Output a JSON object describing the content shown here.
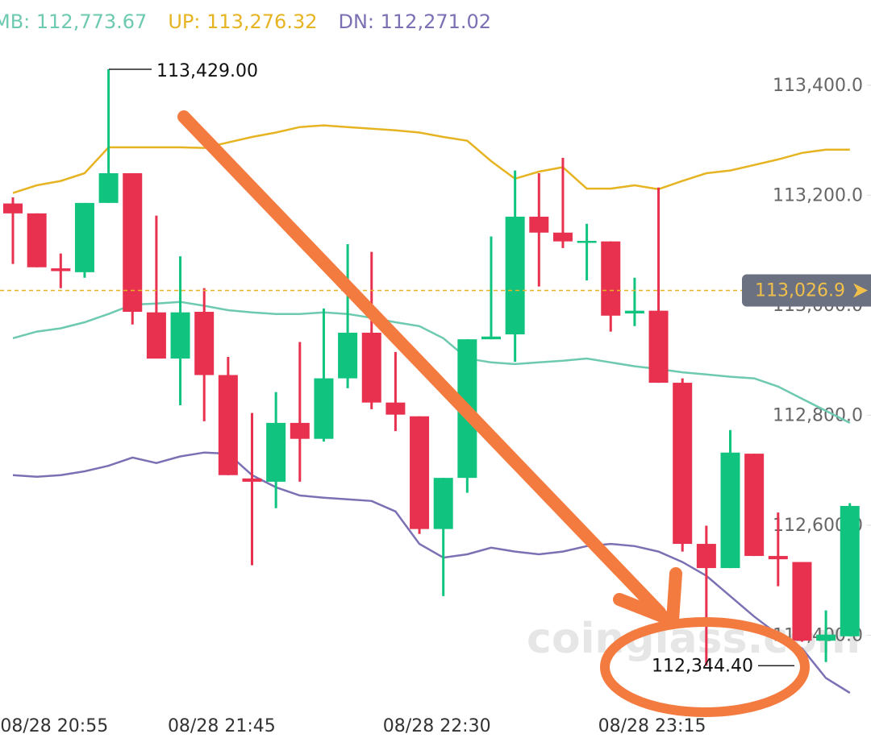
{
  "chart_data": {
    "type": "candlestick",
    "categories": [
      null,
      null,
      "08/28 20:55",
      null,
      null,
      null,
      null,
      null,
      null,
      "08/28 21:45",
      null,
      null,
      null,
      null,
      null,
      null,
      null,
      null,
      "08/28 22:30",
      null,
      null,
      null,
      null,
      null,
      null,
      null,
      null,
      "08/28 23:15",
      null,
      null,
      null,
      null,
      null,
      null,
      null,
      null
    ],
    "open": [
      113185,
      113167,
      113067,
      113060,
      113186,
      113240,
      112987,
      112903,
      112988,
      112873,
      112685,
      112679,
      112786,
      112757,
      112867,
      112950,
      112823,
      112798,
      112593,
      112686,
      112938,
      112947,
      113161,
      113132,
      113116,
      113116,
      112985,
      112990,
      112859,
      112566,
      112522,
      112730,
      112544,
      112533,
      112390,
      112398
    ],
    "high": [
      113196,
      113167,
      113094,
      113186,
      113429,
      113240,
      113163,
      113089,
      113031,
      112906,
      112804,
      112842,
      112933,
      112994,
      113111,
      113097,
      112915,
      112798,
      112686,
      112938,
      113125,
      113245,
      113240,
      113268,
      113148,
      113116,
      113050,
      113214,
      112867,
      112599,
      112773,
      112730,
      112623,
      112533,
      112445,
      112640
    ],
    "low": [
      113075,
      113069,
      113031,
      113050,
      113186,
      112965,
      112903,
      112818,
      112789,
      112691,
      112527,
      112631,
      112679,
      112752,
      112849,
      112811,
      112771,
      112584,
      112471,
      112659,
      112938,
      112897,
      113034,
      113104,
      113045,
      112952,
      112962,
      112859,
      112552,
      112344.4,
      112522,
      112544,
      112489,
      112388,
      112351,
      112398
    ],
    "close": [
      113167,
      113069,
      113062,
      113186,
      113240,
      112988,
      112903,
      112987,
      112873,
      112691,
      112679,
      112786,
      112757,
      112867,
      112950,
      112823,
      112801,
      112593,
      112686,
      112938,
      112943,
      113161,
      113132,
      113116,
      113117,
      112981,
      112990,
      112859,
      112566,
      112522,
      112732,
      112544,
      112538,
      112390,
      112401,
      112635
    ],
    "up_color": "#10c47f",
    "down_color": "#e8304f",
    "series": [
      {
        "name": "MB: 112,773.67",
        "color": "#6dc9b0",
        "values": [
          112940,
          112952,
          112958,
          112969,
          112984,
          113001,
          113003,
          113006,
          112999,
          112991,
          112987,
          112984,
          112984,
          112987,
          112984,
          112977,
          112969,
          112962,
          112940,
          112903,
          112896,
          112893,
          112896,
          112899,
          112903,
          112896,
          112889,
          112884,
          112878,
          112874,
          112870,
          112867,
          112852,
          112830,
          112808,
          112786
        ]
      },
      {
        "name": "UP: 113,276.32",
        "color": "#e6b422",
        "values": [
          113204,
          113218,
          113226,
          113240,
          113287,
          113287,
          113287,
          113287,
          113286,
          113296,
          113306,
          113314,
          113324,
          113327,
          113324,
          113321,
          113318,
          113314,
          113306,
          113299,
          113262,
          113230,
          113243,
          113251,
          113212,
          113212,
          113218,
          113211,
          113226,
          113240,
          113245,
          113255,
          113265,
          113277,
          113283,
          113283
        ]
      },
      {
        "name": "DN: 112,271.02",
        "color": "#7c70b4",
        "values": [
          112691,
          112688,
          112691,
          112698,
          112708,
          112723,
          112713,
          112725,
          112732,
          112730,
          112691,
          112669,
          112654,
          112650,
          112647,
          112644,
          112625,
          112566,
          112541,
          112547,
          112559,
          112552,
          112547,
          112552,
          112562,
          112566,
          112562,
          112552,
          112533,
          112508,
          112471,
          112434,
          112401,
          112376,
          112322,
          112295
        ]
      }
    ],
    "ylim": [
      112213,
      113555
    ],
    "yticks": [
      {
        "value": 113400,
        "label": "113,400.0"
      },
      {
        "value": 113200,
        "label": "113,200.0"
      },
      {
        "value": 113000,
        "label": "113,000.0"
      },
      {
        "value": 112800,
        "label": "112,800.0"
      },
      {
        "value": 112600,
        "label": "112,600.0"
      },
      {
        "value": 112400,
        "label": "112,400.0"
      }
    ],
    "current_price": {
      "value": 113026.9,
      "label": "113,026.9"
    },
    "annotations": [
      {
        "value": 113429,
        "label": "113,429.00"
      },
      {
        "value": 112344.4,
        "label": "112,344.40"
      }
    ],
    "watermark": "coinglass.com"
  }
}
